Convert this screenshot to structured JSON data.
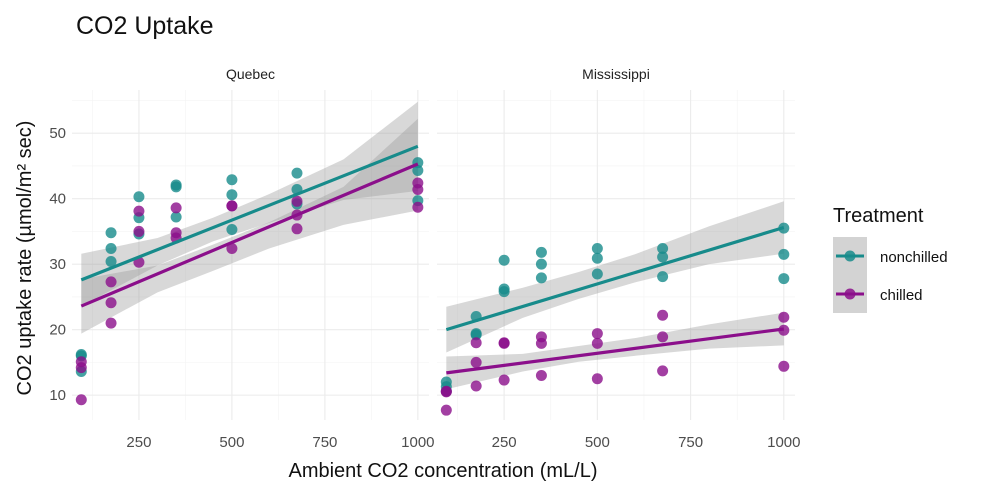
{
  "chart_data": {
    "type": "scatter",
    "title": "CO2 Uptake",
    "xlabel": "Ambient CO2 concentration (mL/L)",
    "ylabel": "CO2 uptake rate (µmol/m² sec)",
    "xlim": [
      70,
      1030
    ],
    "ylim": [
      6.2,
      56.6
    ],
    "x_ticks": [
      250,
      500,
      750,
      1000
    ],
    "y_ticks": [
      10,
      20,
      30,
      40,
      50
    ],
    "grid": true,
    "legend": {
      "title": "Treatment",
      "position": "right",
      "entries": [
        {
          "label": "nonchilled",
          "color": "#178b8b"
        },
        {
          "label": "chilled",
          "color": "#8b0f8b"
        }
      ]
    },
    "facets": [
      {
        "name": "Quebec",
        "series": [
          {
            "name": "nonchilled",
            "color": "#178b8b",
            "points": [
              [
                95,
                16
              ],
              [
                95,
                13.6
              ],
              [
                95,
                16.2
              ],
              [
                175,
                30.4
              ],
              [
                175,
                32.4
              ],
              [
                175,
                34.8
              ],
              [
                250,
                40.3
              ],
              [
                250,
                37.1
              ],
              [
                250,
                34.6
              ],
              [
                350,
                42.1
              ],
              [
                350,
                41.8
              ],
              [
                350,
                37.2
              ],
              [
                500,
                42.9
              ],
              [
                500,
                40.6
              ],
              [
                500,
                35.3
              ],
              [
                675,
                43.9
              ],
              [
                675,
                41.4
              ],
              [
                675,
                39.2
              ],
              [
                1000,
                45.5
              ],
              [
                1000,
                44.3
              ],
              [
                1000,
                39.7
              ]
            ],
            "fit": [
              [
                95,
                27.6
              ],
              [
                1000,
                48.0
              ]
            ],
            "band": [
              [
                95,
                23.6,
                31.6
              ],
              [
                300,
                29.8,
                34.0
              ],
              [
                450,
                33.5,
                37.1
              ],
              [
                600,
                36.3,
                40.7
              ],
              [
                800,
                39.8,
                46.0
              ],
              [
                1000,
                41.2,
                54.8
              ]
            ]
          },
          {
            "name": "chilled",
            "color": "#8b0f8b",
            "points": [
              [
                95,
                14.2
              ],
              [
                95,
                9.3
              ],
              [
                95,
                15.1
              ],
              [
                175,
                24.1
              ],
              [
                175,
                27.3
              ],
              [
                175,
                21
              ],
              [
                250,
                30.3
              ],
              [
                250,
                35
              ],
              [
                250,
                38.1
              ],
              [
                350,
                34.8
              ],
              [
                350,
                38.6
              ],
              [
                350,
                34
              ],
              [
                500,
                38.9
              ],
              [
                500,
                38.9
              ],
              [
                500,
                32.4
              ],
              [
                675,
                39.6
              ],
              [
                675,
                37.5
              ],
              [
                675,
                35.4
              ],
              [
                1000,
                41.4
              ],
              [
                1000,
                42.4
              ],
              [
                1000,
                38.7
              ]
            ],
            "fit": [
              [
                95,
                23.6
              ],
              [
                1000,
                45.3
              ]
            ],
            "band": [
              [
                95,
                19.4,
                27.7
              ],
              [
                300,
                25.7,
                29.8
              ],
              [
                450,
                29.0,
                33.0
              ],
              [
                600,
                32.4,
                36.4
              ],
              [
                800,
                36.0,
                41.8
              ],
              [
                1000,
                38.2,
                52.2
              ]
            ]
          }
        ]
      },
      {
        "name": "Mississippi",
        "series": [
          {
            "name": "nonchilled",
            "color": "#178b8b",
            "points": [
              [
                95,
                10.6
              ],
              [
                95,
                12
              ],
              [
                95,
                11.3
              ],
              [
                175,
                19.2
              ],
              [
                175,
                22
              ],
              [
                175,
                19.4
              ],
              [
                250,
                26.2
              ],
              [
                250,
                30.6
              ],
              [
                250,
                25.8
              ],
              [
                350,
                30
              ],
              [
                350,
                31.8
              ],
              [
                350,
                27.9
              ],
              [
                500,
                30.9
              ],
              [
                500,
                32.4
              ],
              [
                500,
                28.5
              ],
              [
                675,
                32.4
              ],
              [
                675,
                31.1
              ],
              [
                675,
                28.1
              ],
              [
                1000,
                35.5
              ],
              [
                1000,
                31.5
              ],
              [
                1000,
                27.8
              ]
            ],
            "fit": [
              [
                95,
                20.0
              ],
              [
                1000,
                35.6
              ]
            ],
            "band": [
              [
                95,
                16.5,
                23.5
              ],
              [
                300,
                21.8,
                26.4
              ],
              [
                450,
                24.7,
                28.8
              ],
              [
                600,
                27.2,
                31.5
              ],
              [
                800,
                30.0,
                35.8
              ],
              [
                1000,
                31.6,
                39.6
              ]
            ]
          },
          {
            "name": "chilled",
            "color": "#8b0f8b",
            "points": [
              [
                95,
                10.5
              ],
              [
                95,
                7.7
              ],
              [
                95,
                10.6
              ],
              [
                175,
                15
              ],
              [
                175,
                11.4
              ],
              [
                175,
                18
              ],
              [
                250,
                18
              ],
              [
                250,
                12.3
              ],
              [
                250,
                17.9
              ],
              [
                350,
                17.9
              ],
              [
                350,
                13
              ],
              [
                350,
                18.9
              ],
              [
                500,
                19.4
              ],
              [
                500,
                12.5
              ],
              [
                500,
                17.9
              ],
              [
                675,
                22.2
              ],
              [
                675,
                13.7
              ],
              [
                675,
                18.9
              ],
              [
                1000,
                21.9
              ],
              [
                1000,
                14.4
              ],
              [
                1000,
                19.9
              ]
            ],
            "fit": [
              [
                95,
                13.4
              ],
              [
                1000,
                20.1
              ]
            ],
            "band": [
              [
                95,
                10.9,
                15.9
              ],
              [
                300,
                13.6,
                16.3
              ],
              [
                450,
                15.1,
                17.5
              ],
              [
                600,
                16.0,
                18.7
              ],
              [
                800,
                17.1,
                20.8
              ],
              [
                1000,
                17.6,
                22.6
              ]
            ]
          }
        ]
      }
    ]
  }
}
